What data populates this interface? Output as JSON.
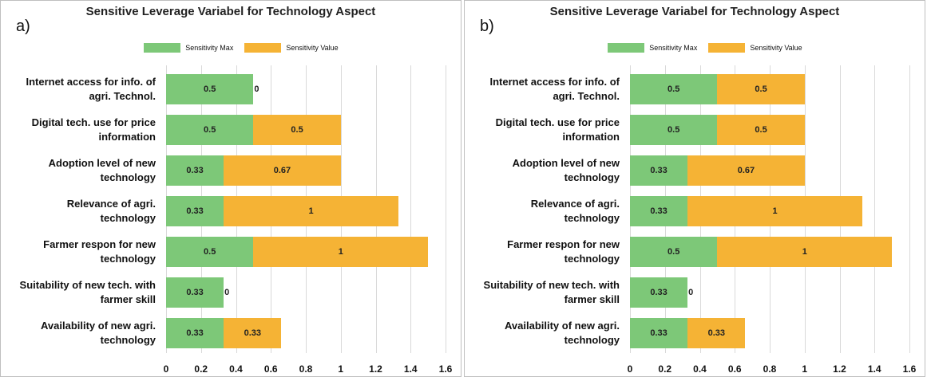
{
  "chart_data": [
    {
      "type": "stacked-barh",
      "panel_label": "a)",
      "title": "Sensitive Leverage Variabel for Technology Aspect",
      "categories": [
        "Internet access for info. of agri. Technol.",
        "Digital tech. use for price information",
        "Adoption level of new technology",
        "Relevance of agri. technology",
        "Farmer respon for new technology",
        "Suitability of new tech. with farmer skill",
        "Availability of new agri. technology"
      ],
      "series": [
        {
          "name": "Sensitivity Max",
          "color": "#7dc878",
          "values": [
            0.5,
            0.5,
            0.33,
            0.33,
            0.5,
            0.33,
            0.33
          ]
        },
        {
          "name": "Sensitivity Value",
          "color": "#f5b335",
          "values": [
            0,
            0.5,
            0.67,
            1,
            1,
            0,
            0.33
          ]
        }
      ],
      "xlim": [
        0,
        1.6
      ],
      "xticks": [
        0,
        0.2,
        0.4,
        0.6,
        0.8,
        1,
        1.2,
        1.4,
        1.6
      ],
      "grid": true
    },
    {
      "type": "stacked-barh",
      "panel_label": "b)",
      "title": "Sensitive Leverage Variabel for Technology Aspect",
      "categories": [
        "Internet access for info. of agri. Technol.",
        "Digital tech. use for price information",
        "Adoption level of new technology",
        "Relevance of agri. technology",
        "Farmer respon for new technology",
        "Suitability of new tech. with farmer skill",
        "Availability of new agri. technology"
      ],
      "series": [
        {
          "name": "Sensitivity Max",
          "color": "#7dc878",
          "values": [
            0.5,
            0.5,
            0.33,
            0.33,
            0.5,
            0.33,
            0.33
          ]
        },
        {
          "name": "Sensitivity Value",
          "color": "#f5b335",
          "values": [
            0.5,
            0.5,
            0.67,
            1,
            1,
            0,
            0.33
          ]
        }
      ],
      "xlim": [
        0,
        1.6
      ],
      "xticks": [
        0,
        0.2,
        0.4,
        0.6,
        0.8,
        1,
        1.2,
        1.4,
        1.6
      ],
      "grid": true
    }
  ]
}
